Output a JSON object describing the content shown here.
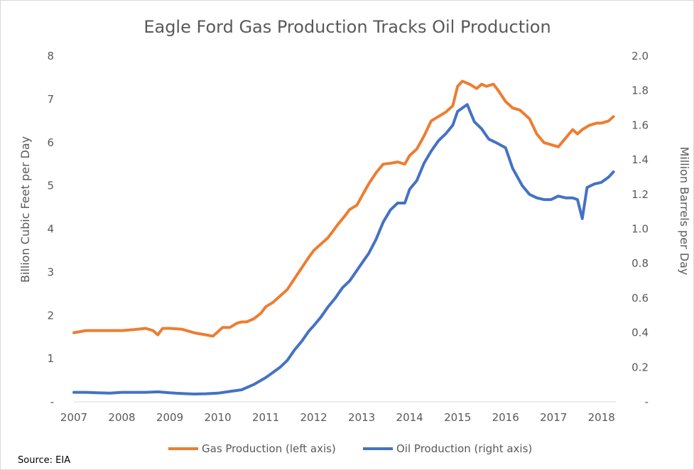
{
  "chart_data": {
    "type": "line",
    "title": "Eagle Ford Gas Production Tracks Oil Production",
    "ylabel": "Billion Cubic Feet per Day",
    "y2label": "Million Barrels per Day",
    "xlim": [
      2007,
      2018.3
    ],
    "ylim": [
      0,
      8
    ],
    "y2lim": [
      0,
      2.0
    ],
    "x_ticks": [
      "2007",
      "2008",
      "2009",
      "2010",
      "2011",
      "2012",
      "2013",
      "2014",
      "2015",
      "2016",
      "2017",
      "2018"
    ],
    "y_ticks": [
      "-",
      "1",
      "2",
      "3",
      "4",
      "5",
      "6",
      "7",
      "8"
    ],
    "y2_ticks": [
      "-",
      "0.2",
      "0.4",
      "0.6",
      "0.8",
      "1.0",
      "1.2",
      "1.4",
      "1.6",
      "1.8",
      "2.0"
    ],
    "grid": false,
    "legend_position": "bottom",
    "source": "Source: EIA",
    "series": [
      {
        "name": "Gas Production (left axis)",
        "axis": "left",
        "color": "#ED7D31",
        "x": [
          2007.0,
          2007.25,
          2007.5,
          2007.75,
          2008.0,
          2008.25,
          2008.5,
          2008.65,
          2008.75,
          2008.85,
          2009.0,
          2009.25,
          2009.5,
          2009.75,
          2009.9,
          2010.0,
          2010.1,
          2010.25,
          2010.4,
          2010.5,
          2010.6,
          2010.75,
          2010.9,
          2011.0,
          2011.15,
          2011.3,
          2011.45,
          2011.6,
          2011.75,
          2011.9,
          2012.0,
          2012.15,
          2012.3,
          2012.5,
          2012.65,
          2012.75,
          2012.9,
          2013.0,
          2013.15,
          2013.3,
          2013.45,
          2013.6,
          2013.75,
          2013.9,
          2014.0,
          2014.15,
          2014.3,
          2014.45,
          2014.6,
          2014.75,
          2014.9,
          2015.0,
          2015.1,
          2015.25,
          2015.4,
          2015.5,
          2015.6,
          2015.75,
          2015.85,
          2016.0,
          2016.15,
          2016.3,
          2016.5,
          2016.65,
          2016.8,
          2016.95,
          2017.1,
          2017.25,
          2017.4,
          2017.5,
          2017.6,
          2017.75,
          2017.9,
          2018.0,
          2018.15,
          2018.25
        ],
        "values": [
          1.6,
          1.65,
          1.65,
          1.65,
          1.65,
          1.67,
          1.7,
          1.65,
          1.55,
          1.7,
          1.7,
          1.68,
          1.6,
          1.55,
          1.52,
          1.62,
          1.72,
          1.72,
          1.82,
          1.85,
          1.85,
          1.92,
          2.05,
          2.2,
          2.3,
          2.45,
          2.6,
          2.85,
          3.1,
          3.35,
          3.5,
          3.65,
          3.8,
          4.1,
          4.3,
          4.45,
          4.55,
          4.75,
          5.05,
          5.3,
          5.5,
          5.52,
          5.55,
          5.5,
          5.7,
          5.85,
          6.15,
          6.5,
          6.6,
          6.7,
          6.85,
          7.3,
          7.42,
          7.35,
          7.25,
          7.35,
          7.3,
          7.35,
          7.2,
          6.95,
          6.8,
          6.75,
          6.55,
          6.2,
          6.0,
          5.95,
          5.9,
          6.1,
          6.3,
          6.2,
          6.3,
          6.4,
          6.45,
          6.45,
          6.5,
          6.6
        ]
      },
      {
        "name": "Oil Production (right axis)",
        "axis": "right",
        "color": "#4472C4",
        "x": [
          2007.0,
          2007.25,
          2007.5,
          2007.75,
          2008.0,
          2008.25,
          2008.5,
          2008.75,
          2009.0,
          2009.25,
          2009.5,
          2009.75,
          2010.0,
          2010.25,
          2010.5,
          2010.75,
          2011.0,
          2011.15,
          2011.3,
          2011.45,
          2011.6,
          2011.75,
          2011.9,
          2012.0,
          2012.15,
          2012.3,
          2012.45,
          2012.6,
          2012.75,
          2012.9,
          2013.0,
          2013.15,
          2013.3,
          2013.45,
          2013.6,
          2013.75,
          2013.9,
          2014.0,
          2014.15,
          2014.3,
          2014.45,
          2014.6,
          2014.75,
          2014.9,
          2015.0,
          2015.1,
          2015.2,
          2015.35,
          2015.5,
          2015.65,
          2015.8,
          2016.0,
          2016.15,
          2016.35,
          2016.5,
          2016.65,
          2016.8,
          2016.95,
          2017.1,
          2017.25,
          2017.4,
          2017.5,
          2017.6,
          2017.7,
          2017.85,
          2018.0,
          2018.15,
          2018.25
        ],
        "values": [
          0.055,
          0.055,
          0.052,
          0.05,
          0.055,
          0.055,
          0.055,
          0.058,
          0.052,
          0.048,
          0.045,
          0.047,
          0.05,
          0.06,
          0.07,
          0.1,
          0.14,
          0.17,
          0.2,
          0.24,
          0.3,
          0.35,
          0.41,
          0.44,
          0.49,
          0.55,
          0.6,
          0.66,
          0.7,
          0.76,
          0.8,
          0.86,
          0.94,
          1.04,
          1.11,
          1.15,
          1.15,
          1.23,
          1.28,
          1.38,
          1.45,
          1.51,
          1.55,
          1.6,
          1.68,
          1.7,
          1.72,
          1.62,
          1.58,
          1.52,
          1.5,
          1.47,
          1.35,
          1.25,
          1.2,
          1.18,
          1.17,
          1.17,
          1.19,
          1.18,
          1.18,
          1.17,
          1.06,
          1.24,
          1.26,
          1.27,
          1.3,
          1.33
        ]
      }
    ]
  }
}
